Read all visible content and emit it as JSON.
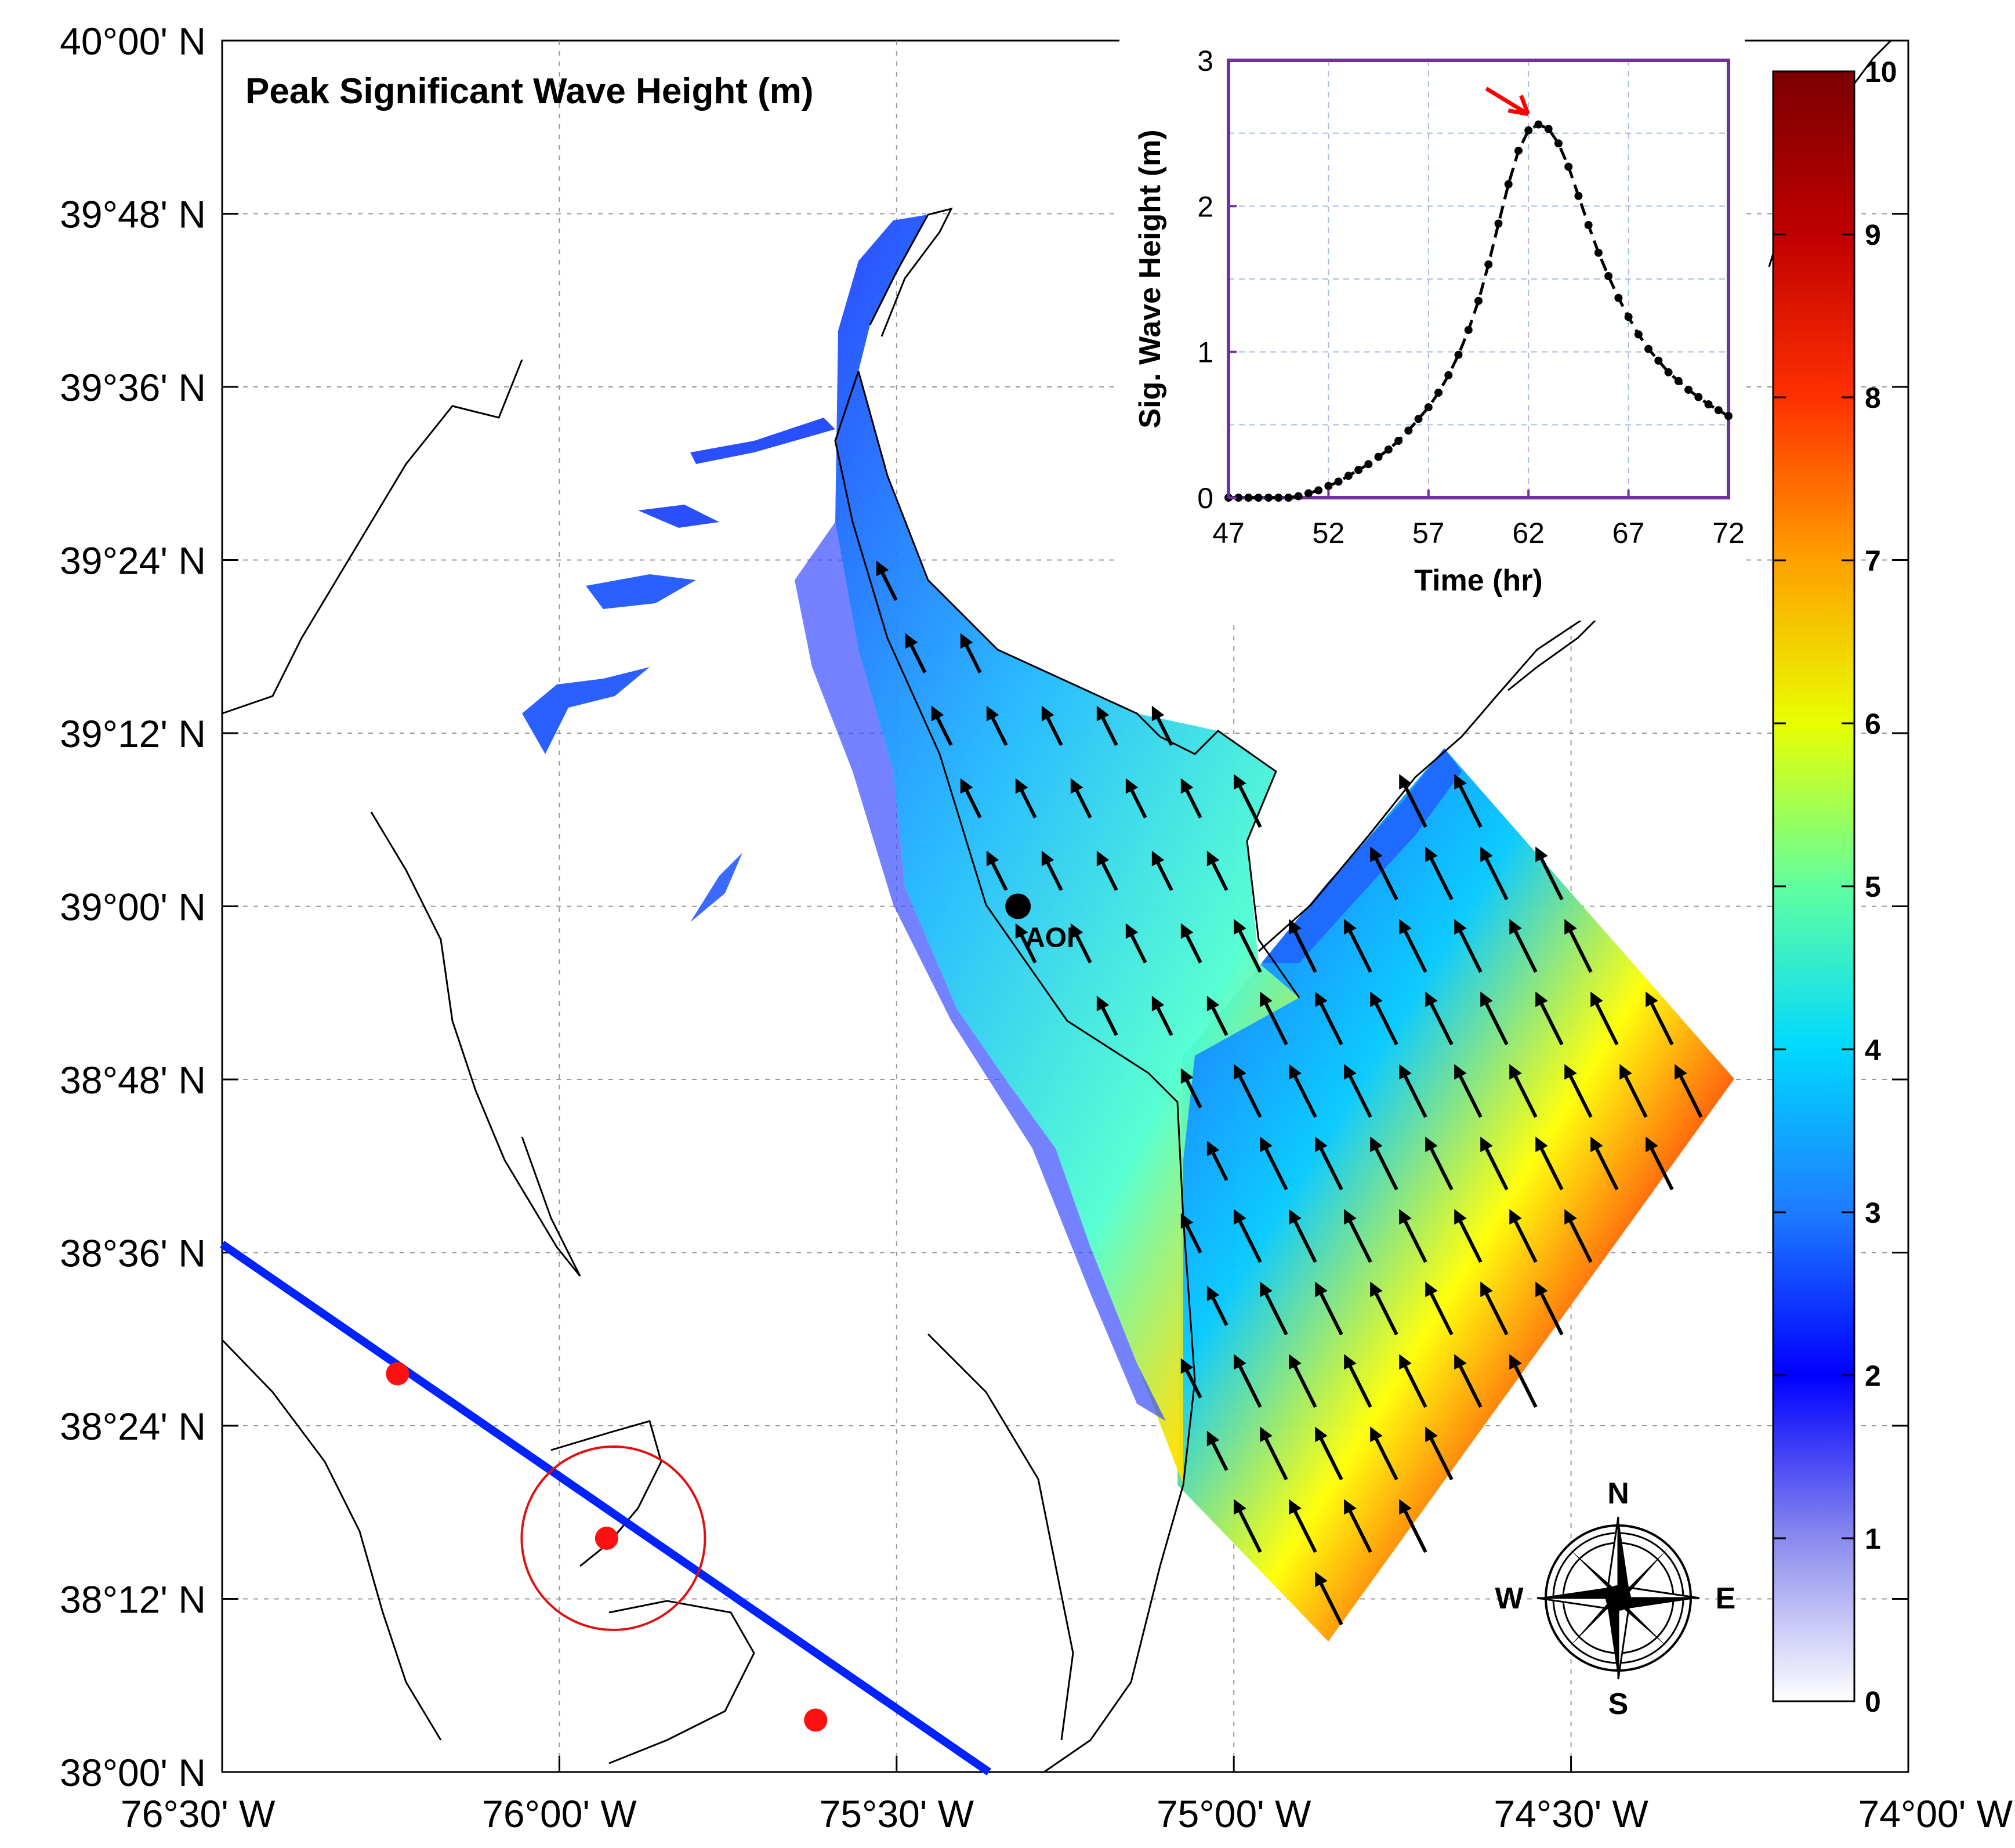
{
  "map": {
    "title": "Peak Significant Wave Height (m)",
    "lat_ticks": [
      "40°00' N",
      "39°48' N",
      "39°36' N",
      "39°24' N",
      "39°12' N",
      "39°00' N",
      "38°48' N",
      "38°36' N",
      "38°24' N",
      "38°12' N",
      "38°00' N"
    ],
    "lon_ticks": [
      "76°30' W",
      "76°00' W",
      "75°30' W",
      "75°00' W",
      "74°30' W",
      "74°00' W"
    ],
    "lat_range": [
      38.0,
      40.0
    ],
    "lon_range": [
      -76.5,
      -74.0
    ],
    "grid": true,
    "aoi_label": "AOI",
    "aoi": {
      "lat": 39.0,
      "lon": -75.32
    },
    "storm_track_color": "#0022ff",
    "storm_points": [
      {
        "lat": 38.46,
        "lon": -76.24
      },
      {
        "lat": 38.27,
        "lon": -75.93
      },
      {
        "lat": 38.06,
        "lon": -75.62
      }
    ],
    "highlight_circle": {
      "lat": 38.27,
      "lon": -75.92
    }
  },
  "colorbar": {
    "ticks": [
      "0",
      "1",
      "2",
      "3",
      "4",
      "5",
      "6",
      "7",
      "8",
      "9",
      "10"
    ],
    "min": 0,
    "max": 10,
    "colors": [
      "#ffffff",
      "#6a6ae8",
      "#0000ff",
      "#1e90ff",
      "#00e5ff",
      "#7fff7f",
      "#ffff00",
      "#ff9900",
      "#ff2200",
      "#b00000",
      "#800000"
    ]
  },
  "compass": {
    "n": "N",
    "s": "S",
    "e": "E",
    "w": "W"
  },
  "chart_data": {
    "type": "line",
    "xlabel": "Time (hr)",
    "ylabel": "Sig. Wave Height (m)",
    "xlim": [
      47,
      72
    ],
    "ylim": [
      0,
      3
    ],
    "x_ticks": [
      "47",
      "52",
      "57",
      "62",
      "67",
      "72"
    ],
    "y_ticks": [
      "0",
      "1",
      "2",
      "3"
    ],
    "x": [
      47,
      47.5,
      48,
      48.5,
      49,
      49.5,
      50,
      50.5,
      51,
      51.5,
      52,
      52.5,
      53,
      53.5,
      54,
      54.5,
      55,
      55.5,
      56,
      56.5,
      57,
      57.5,
      58,
      58.5,
      59,
      59.5,
      60,
      60.5,
      61,
      61.5,
      62,
      62.5,
      63,
      63.5,
      64,
      64.5,
      65,
      65.5,
      66,
      66.5,
      67,
      67.5,
      68,
      68.5,
      69,
      69.5,
      70,
      70.5,
      71,
      71.5,
      72
    ],
    "y": [
      0.0,
      0.0,
      0.0,
      0.0,
      0.0,
      0.0,
      0.0,
      0.01,
      0.03,
      0.05,
      0.08,
      0.11,
      0.15,
      0.19,
      0.23,
      0.28,
      0.33,
      0.39,
      0.46,
      0.54,
      0.62,
      0.72,
      0.84,
      0.98,
      1.15,
      1.35,
      1.6,
      1.88,
      2.15,
      2.38,
      2.52,
      2.56,
      2.53,
      2.43,
      2.27,
      2.07,
      1.87,
      1.68,
      1.52,
      1.37,
      1.24,
      1.12,
      1.02,
      0.94,
      0.86,
      0.8,
      0.74,
      0.69,
      0.64,
      0.6,
      0.56
    ],
    "peak_marker_color": "#ff0000"
  }
}
